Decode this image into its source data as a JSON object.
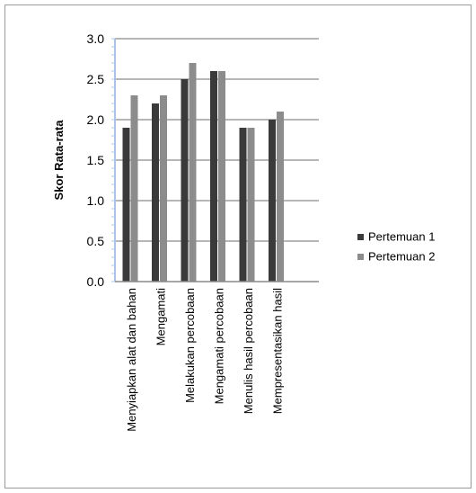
{
  "chart_data": {
    "type": "bar",
    "title": "",
    "xlabel": "",
    "ylabel": "Skor Rata-rata",
    "ylim": [
      0,
      3.0
    ],
    "yticks": [
      "0.0",
      "0.5",
      "1.0",
      "1.5",
      "2.0",
      "2.5",
      "3.0"
    ],
    "grid": true,
    "legend_position": "right",
    "categories": [
      "Menyiapkan alat dan bahan",
      "Mengamati",
      "Melakukan percobaan",
      "Mengamati percobaan",
      "Menulis hasil percobaan",
      "Mempresentasikan hasil"
    ],
    "series": [
      {
        "name": "Pertemuan 1",
        "color": "#3a3a3a",
        "values": [
          1.9,
          2.2,
          2.5,
          2.6,
          1.9,
          2.0
        ]
      },
      {
        "name": "Pertemuan 2",
        "color": "#8c8c8c",
        "values": [
          2.3,
          2.3,
          2.7,
          2.6,
          1.9,
          2.1
        ]
      }
    ]
  }
}
